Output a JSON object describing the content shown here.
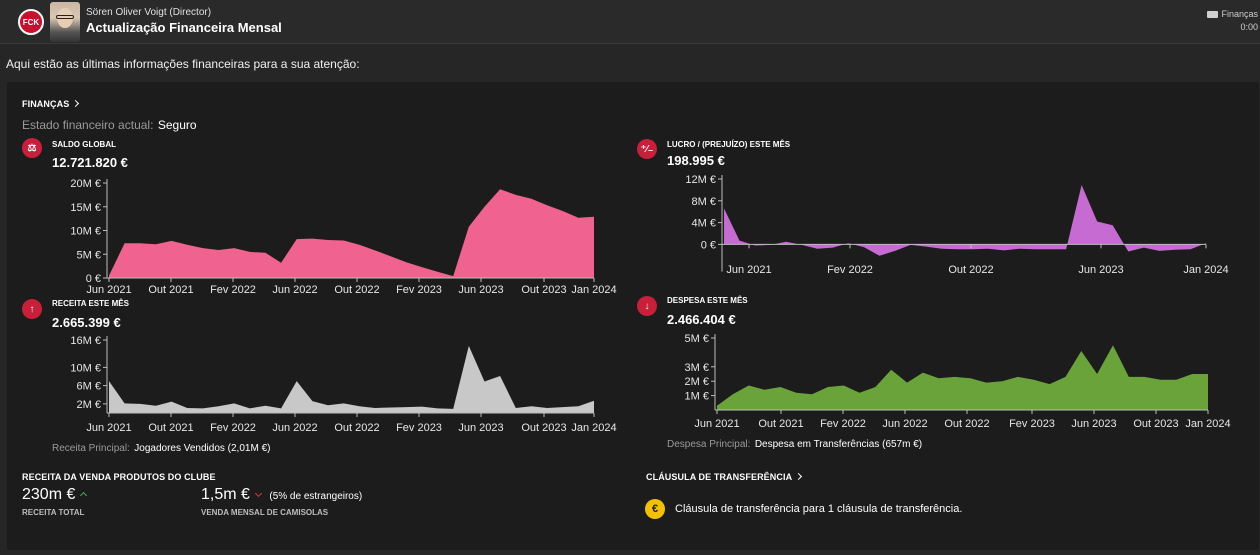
{
  "header": {
    "sender": "Sören Oliver Voigt  (Director)",
    "subject": "Actualização Financeira Mensal",
    "category": "Finanças",
    "time": "0:00",
    "club_logo_text": "FCK"
  },
  "intro": "Aqui estão as últimas informações financeiras para a sua atenção:",
  "finance": {
    "title": "FINANÇAS",
    "state_label": "Estado financeiro actual:",
    "state_value": "Seguro"
  },
  "stats": {
    "balance": {
      "label": "SALDO GLOBAL",
      "value": "12.721.820 €",
      "icon": "scale-icon",
      "icon_glyph": "⚖"
    },
    "profit": {
      "label": "LUCRO / (PREJUÍZO) ESTE MÊS",
      "value": "198.995 €",
      "icon": "profit-loss-icon",
      "icon_glyph": "⁺⁄₋"
    },
    "income": {
      "label": "RECEITA ESTE MÊS",
      "value": "2.665.399 €",
      "icon": "arrow-up-icon",
      "icon_glyph": "↑",
      "sub_label": "Receita Principal:",
      "sub_value": "Jogadores Vendidos (2,01M €)"
    },
    "expense": {
      "label": "DESPESA ESTE MÊS",
      "value": "2.466.404 €",
      "icon": "arrow-down-icon",
      "icon_glyph": "↓",
      "sub_label": "Despesa Principal:",
      "sub_value": "Despesa em Transferências (657m €)"
    }
  },
  "merch": {
    "title": "RECEITA DA VENDA PRODUTOS DO CLUBE",
    "total_value": "230m €",
    "total_label": "RECEITA TOTAL",
    "monthly_value": "1,5m €",
    "monthly_note": "(5% de estrangeiros)",
    "monthly_label": "VENDA MENSAL DE CAMISOLAS"
  },
  "clause": {
    "title": "CLÁUSULA DE TRANSFERÊNCIA",
    "text": "Cláusula de transferência para 1 cláusula de transferência.",
    "icon_glyph": "€"
  },
  "colors": {
    "balance": "#f0628f",
    "profit": "#c56bd2",
    "income": "#c8c8c8",
    "expense": "#6aa33a",
    "icon_red": "#c8203a",
    "coin": "#f2c200"
  },
  "chart_data": [
    {
      "type": "area",
      "title": "SALDO GLOBAL",
      "xlabels": [
        "Jun 2021",
        "Out 2021",
        "Fev 2022",
        "Jun 2022",
        "Out 2022",
        "Fev 2023",
        "Jun 2023",
        "Out 2023",
        "Jan 2024"
      ],
      "yticks": [
        "20M €",
        "15M €",
        "10M €",
        "5M €",
        "0 €"
      ],
      "ylim": [
        0,
        20
      ],
      "unit": "M €",
      "x": [
        "Jun 2021",
        "Jul 2021",
        "Ago 2021",
        "Set 2021",
        "Out 2021",
        "Nov 2021",
        "Dez 2021",
        "Jan 2022",
        "Fev 2022",
        "Mar 2022",
        "Abr 2022",
        "Mai 2022",
        "Jun 2022",
        "Jul 2022",
        "Ago 2022",
        "Set 2022",
        "Out 2022",
        "Nov 2022",
        "Dez 2022",
        "Jan 2023",
        "Fev 2023",
        "Mar 2023",
        "Abr 2023",
        "Mai 2023",
        "Jun 2023",
        "Jul 2023",
        "Ago 2023",
        "Set 2023",
        "Out 2023",
        "Nov 2023",
        "Dez 2023",
        "Jan 2024"
      ],
      "values": [
        0.5,
        7.3,
        7.3,
        7.1,
        7.8,
        7.0,
        6.3,
        5.9,
        6.3,
        5.5,
        5.3,
        3.2,
        8.2,
        8.3,
        8.0,
        7.9,
        7.0,
        5.8,
        4.6,
        3.3,
        2.3,
        1.3,
        0.4,
        10.8,
        15.0,
        18.7,
        17.5,
        16.7,
        15.3,
        14.1,
        12.7,
        12.9
      ]
    },
    {
      "type": "area",
      "title": "LUCRO / (PREJUÍZO) ESTE MÊS",
      "xlabels": [
        "Jun 2021",
        "Fev 2022",
        "Out 2022",
        "Jun 2023",
        "Jan 2024"
      ],
      "yticks": [
        "12M €",
        "8M €",
        "4M €",
        "0 €"
      ],
      "ylim": [
        -2.5,
        12
      ],
      "unit": "M €",
      "values": [
        6.6,
        0.7,
        -0.2,
        -0.1,
        0.5,
        -0.1,
        -0.8,
        -0.6,
        0.2,
        -0.5,
        -2.1,
        -1.2,
        -0.1,
        -0.4,
        -0.8,
        -0.9,
        -0.9,
        -0.8,
        -1.1,
        -0.8,
        -0.9,
        -0.9,
        -0.9,
        10.9,
        4.2,
        3.5,
        -1.3,
        -0.6,
        -1.2,
        -1.0,
        -0.9,
        0.2
      ]
    },
    {
      "type": "area",
      "title": "RECEITA ESTE MÊS",
      "xlabels": [
        "Jun 2021",
        "Out 2021",
        "Fev 2022",
        "Jun 2022",
        "Out 2022",
        "Fev 2023",
        "Jun 2023",
        "Out 2023",
        "Jan 2024"
      ],
      "yticks": [
        "16M €",
        "10M €",
        "6M €",
        "2M €"
      ],
      "ylim": [
        0,
        16
      ],
      "unit": "M €",
      "values": [
        7.0,
        2.1,
        2.0,
        1.6,
        2.5,
        1.1,
        1.0,
        1.5,
        2.1,
        1.0,
        1.6,
        1.0,
        7.0,
        2.6,
        1.7,
        2.1,
        1.5,
        1.1,
        1.2,
        1.3,
        1.4,
        1.0,
        0.9,
        14.7,
        6.9,
        8.1,
        1.1,
        1.5,
        1.1,
        1.3,
        1.5,
        2.7
      ]
    },
    {
      "type": "area",
      "title": "DESPESA ESTE MÊS",
      "xlabels": [
        "Jun 2021",
        "Out 2021",
        "Fev 2022",
        "Jun 2022",
        "Out 2022",
        "Fev 2023",
        "Jun 2023",
        "Out 2023",
        "Jan 2024"
      ],
      "yticks": [
        "5M €",
        "3M €",
        "2M €",
        "1M €"
      ],
      "ylim": [
        0,
        5
      ],
      "unit": "M €",
      "values": [
        0.3,
        1.1,
        1.7,
        1.4,
        1.6,
        1.2,
        1.1,
        1.6,
        1.7,
        1.2,
        1.6,
        2.8,
        1.9,
        2.6,
        2.2,
        2.3,
        2.2,
        1.9,
        2.0,
        2.3,
        2.1,
        1.8,
        2.3,
        4.1,
        2.5,
        4.5,
        2.3,
        2.3,
        2.1,
        2.1,
        2.5,
        2.5
      ]
    }
  ]
}
